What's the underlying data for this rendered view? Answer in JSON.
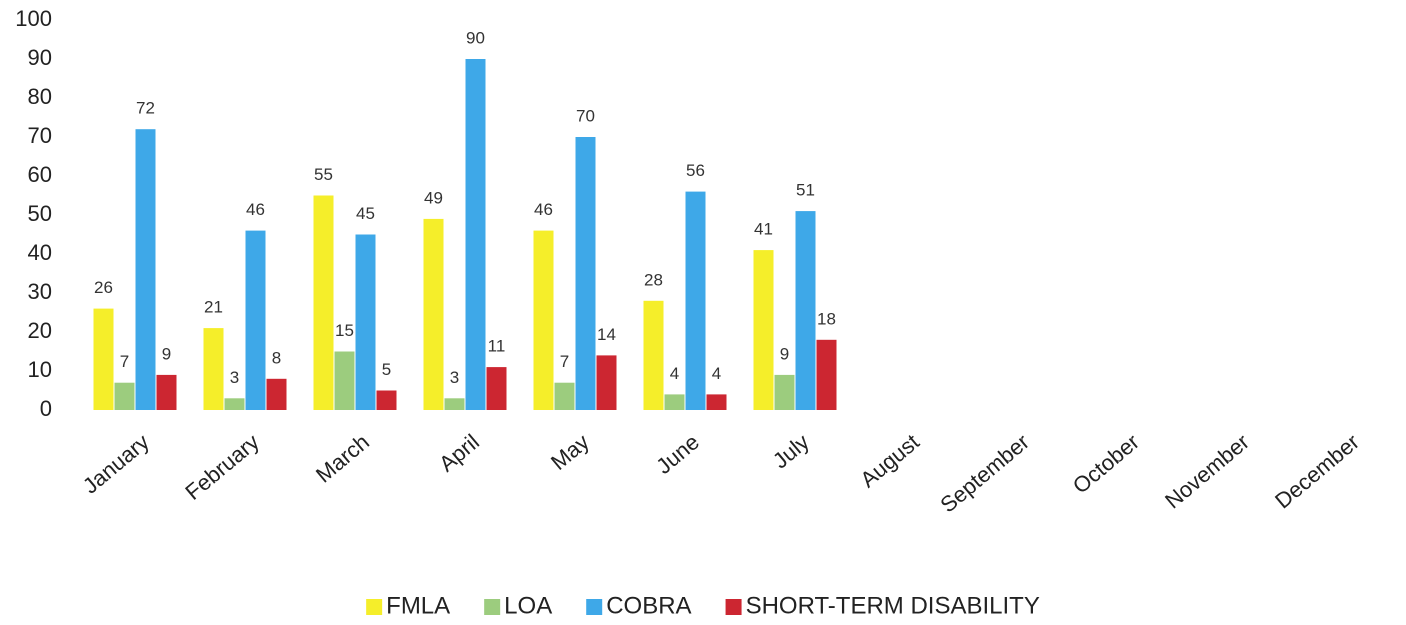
{
  "chart_data": {
    "type": "bar",
    "categories": [
      "January",
      "February",
      "March",
      "April",
      "May",
      "June",
      "July",
      "August",
      "September",
      "October",
      "November",
      "December"
    ],
    "series": [
      {
        "name": "FMLA",
        "color": "#f5ee2a",
        "values": [
          26,
          21,
          55,
          49,
          46,
          28,
          41,
          null,
          null,
          null,
          null,
          null
        ]
      },
      {
        "name": "LOA",
        "color": "#9ccc7e",
        "values": [
          7,
          3,
          15,
          3,
          7,
          4,
          9,
          null,
          null,
          null,
          null,
          null
        ]
      },
      {
        "name": "COBRA",
        "color": "#3ea8e8",
        "values": [
          72,
          46,
          45,
          90,
          70,
          56,
          51,
          null,
          null,
          null,
          null,
          null
        ]
      },
      {
        "name": "SHORT-TERM DISABILITY",
        "color": "#cc2631",
        "values": [
          9,
          8,
          5,
          11,
          14,
          4,
          18,
          null,
          null,
          null,
          null,
          null
        ]
      }
    ],
    "ylim": [
      0,
      100
    ],
    "yticks": [
      0,
      10,
      20,
      30,
      40,
      50,
      60,
      70,
      80,
      90,
      100
    ],
    "legend": "bottom"
  }
}
